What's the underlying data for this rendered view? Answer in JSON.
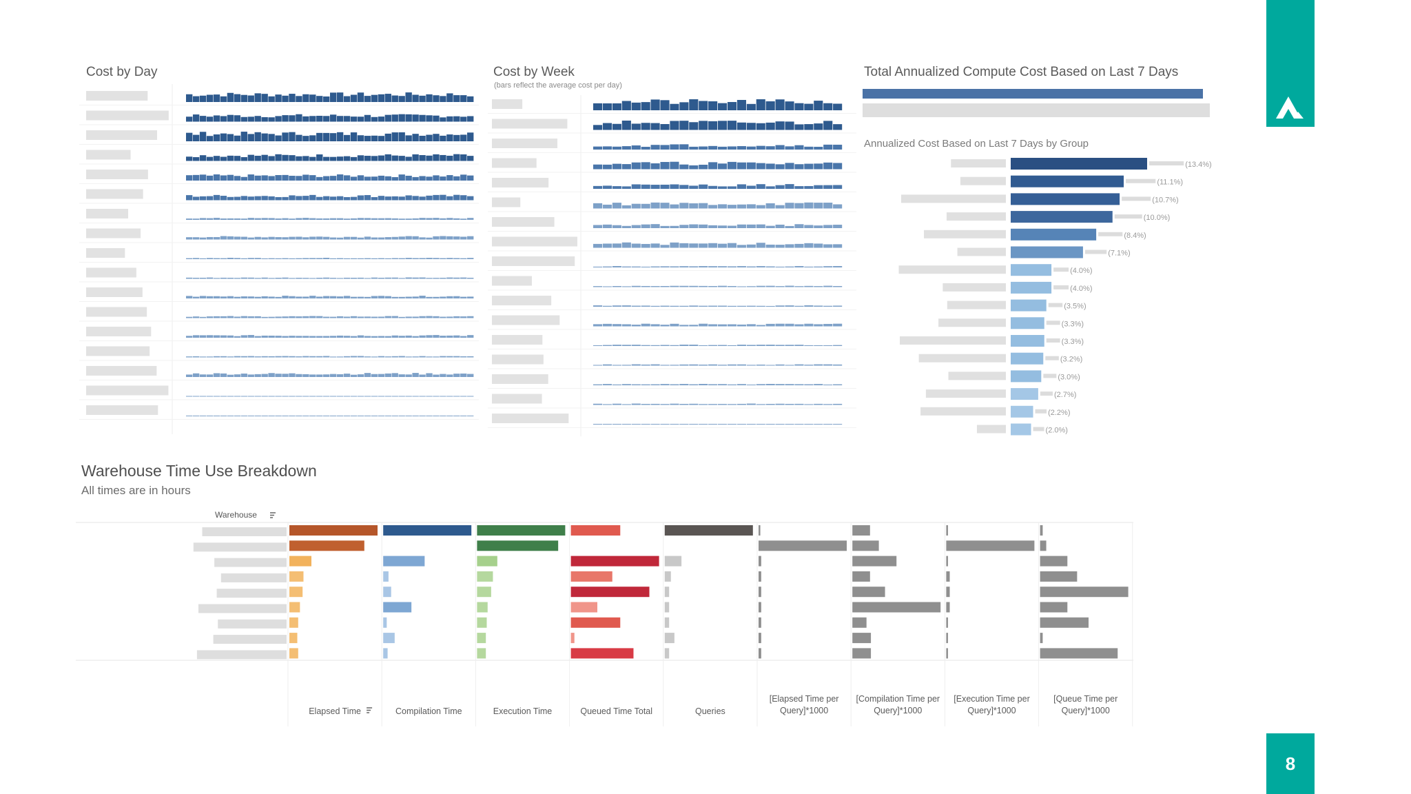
{
  "slide": {
    "page_number": "8",
    "accent_color": "#00a99d"
  },
  "logo": {
    "icon": "mountain-logo-icon"
  },
  "cost_by_day": {
    "title": "Cost by Day",
    "colors": [
      "#2e5a8e",
      "#4a76aa",
      "#7ea1c8"
    ]
  },
  "cost_by_week": {
    "title": "Cost by Week",
    "subtitle": "(bars reflect the average cost per day)"
  },
  "annualized": {
    "title": "Total Annualized Compute Cost Based on Last 7 Days",
    "group_title": "Annualized Cost Based on Last 7 Days by Group"
  },
  "warehouse": {
    "title": "Warehouse Time Use Breakdown",
    "subtitle": "All times are in hours",
    "warehouse_header": "Warehouse",
    "filter_icon": "sort-icon"
  },
  "chart_data": [
    {
      "type": "bar",
      "title": "Annualized Cost Based on Last 7 Days by Group",
      "orientation": "horizontal",
      "values": [
        13.4,
        11.1,
        10.7,
        10.0,
        8.4,
        7.1,
        4.0,
        4.0,
        3.5,
        3.3,
        3.3,
        3.2,
        3.0,
        2.7,
        2.2,
        2.0
      ],
      "labels": [
        "(13.4%)",
        "(11.1%)",
        "(10.7%)",
        "(10.0%)",
        "(8.4%)",
        "(7.1%)",
        "(4.0%)",
        "(4.0%)",
        "(3.5%)",
        "(3.3%)",
        "(3.3%)",
        "(3.2%)",
        "(3.0%)",
        "(2.7%)",
        "(2.2%)",
        "(2.0%)"
      ],
      "colors": [
        "#2a4f82",
        "#315b91",
        "#355f96",
        "#3d679d",
        "#5684b7",
        "#6b96c4",
        "#94bde0",
        "#94bde0",
        "#94bde0",
        "#94bde0",
        "#94bde0",
        "#94bde0",
        "#94bde0",
        "#a4c7e6",
        "#a4c7e6",
        "#a4c7e6"
      ]
    },
    {
      "type": "bar",
      "title": "Warehouse Time Use Breakdown",
      "orientation": "horizontal",
      "rows": 9,
      "columns": [
        {
          "name": "Elapsed Time",
          "filter": true,
          "values": [
            10,
            8.5,
            2.5,
            1.6,
            1.5,
            1.2,
            1.0,
            0.9,
            1.0
          ],
          "colors": [
            "#b5562a",
            "#c0602f",
            "#f2b25c",
            "#f4be73",
            "#f4be73",
            "#f4be73",
            "#f4be73",
            "#f4be73",
            "#f4be73"
          ]
        },
        {
          "name": "Compilation Time",
          "filter": false,
          "values": [
            10,
            0,
            4.7,
            0.6,
            0.9,
            3.2,
            0.4,
            1.3,
            0.5
          ],
          "colors": [
            "#2e5a8e",
            "#2e5a8e",
            "#7ea7d3",
            "#a9c6e5",
            "#a9c6e5",
            "#7ea7d3",
            "#a9c6e5",
            "#a9c6e5",
            "#a9c6e5"
          ]
        },
        {
          "name": "Execution Time",
          "filter": false,
          "values": [
            10,
            9.2,
            2.3,
            1.8,
            1.6,
            1.2,
            1.1,
            1.0,
            1.0
          ],
          "colors": [
            "#3f7f4a",
            "#3f7f4a",
            "#a6d08c",
            "#b5d89e",
            "#b5d89e",
            "#b5d89e",
            "#b5d89e",
            "#b5d89e",
            "#b5d89e"
          ]
        },
        {
          "name": "Queued Time Total",
          "filter": false,
          "values": [
            5.6,
            0,
            10,
            4.7,
            8.9,
            3.0,
            5.6,
            0.4,
            7.1
          ],
          "colors": [
            "#e05a4f",
            "#e05a4f",
            "#c0283a",
            "#e8776a",
            "#c0283a",
            "#f0958a",
            "#e05a4f",
            "#f0958a",
            "#d83b45"
          ]
        },
        {
          "name": "Queries",
          "filter": false,
          "values": [
            10,
            0,
            1.9,
            0.7,
            0.5,
            0.5,
            0.5,
            1.1,
            0.5
          ],
          "colors": [
            "#5a5553",
            "#c8c8c8",
            "#c8c8c8",
            "#c8c8c8",
            "#c8c8c8",
            "#c8c8c8",
            "#c8c8c8",
            "#c8c8c8",
            "#c8c8c8"
          ]
        },
        {
          "name": "[Elapsed Time per Query]*1000",
          "filter": false,
          "values": [
            0.2,
            10,
            0.3,
            0.3,
            0.3,
            0.3,
            0.3,
            0.3,
            0.3
          ],
          "colors": [
            "#8f8f8f",
            "#8f8f8f",
            "#8f8f8f",
            "#8f8f8f",
            "#8f8f8f",
            "#8f8f8f",
            "#8f8f8f",
            "#8f8f8f",
            "#8f8f8f"
          ]
        },
        {
          "name": "[Compilation Time per Query]*1000",
          "filter": false,
          "values": [
            2.0,
            3.0,
            5.0,
            2.0,
            3.7,
            10,
            1.6,
            2.1,
            2.1
          ],
          "colors": [
            "#8f8f8f",
            "#8f8f8f",
            "#8f8f8f",
            "#8f8f8f",
            "#8f8f8f",
            "#8f8f8f",
            "#8f8f8f",
            "#8f8f8f",
            "#8f8f8f"
          ]
        },
        {
          "name": "[Execution Time per Query]*1000",
          "filter": false,
          "values": [
            0.2,
            10,
            0.2,
            0.4,
            0.4,
            0.4,
            0.2,
            0.2,
            0.2
          ],
          "colors": [
            "#8f8f8f",
            "#8f8f8f",
            "#8f8f8f",
            "#8f8f8f",
            "#8f8f8f",
            "#8f8f8f",
            "#8f8f8f",
            "#8f8f8f",
            "#8f8f8f"
          ]
        },
        {
          "name": "[Queue Time per Query]*1000",
          "filter": false,
          "values": [
            0.3,
            0.7,
            3.1,
            4.2,
            10,
            3.1,
            5.5,
            0.3,
            8.8
          ],
          "colors": [
            "#8f8f8f",
            "#8f8f8f",
            "#8f8f8f",
            "#8f8f8f",
            "#8f8f8f",
            "#8f8f8f",
            "#8f8f8f",
            "#8f8f8f",
            "#8f8f8f"
          ]
        }
      ]
    }
  ]
}
